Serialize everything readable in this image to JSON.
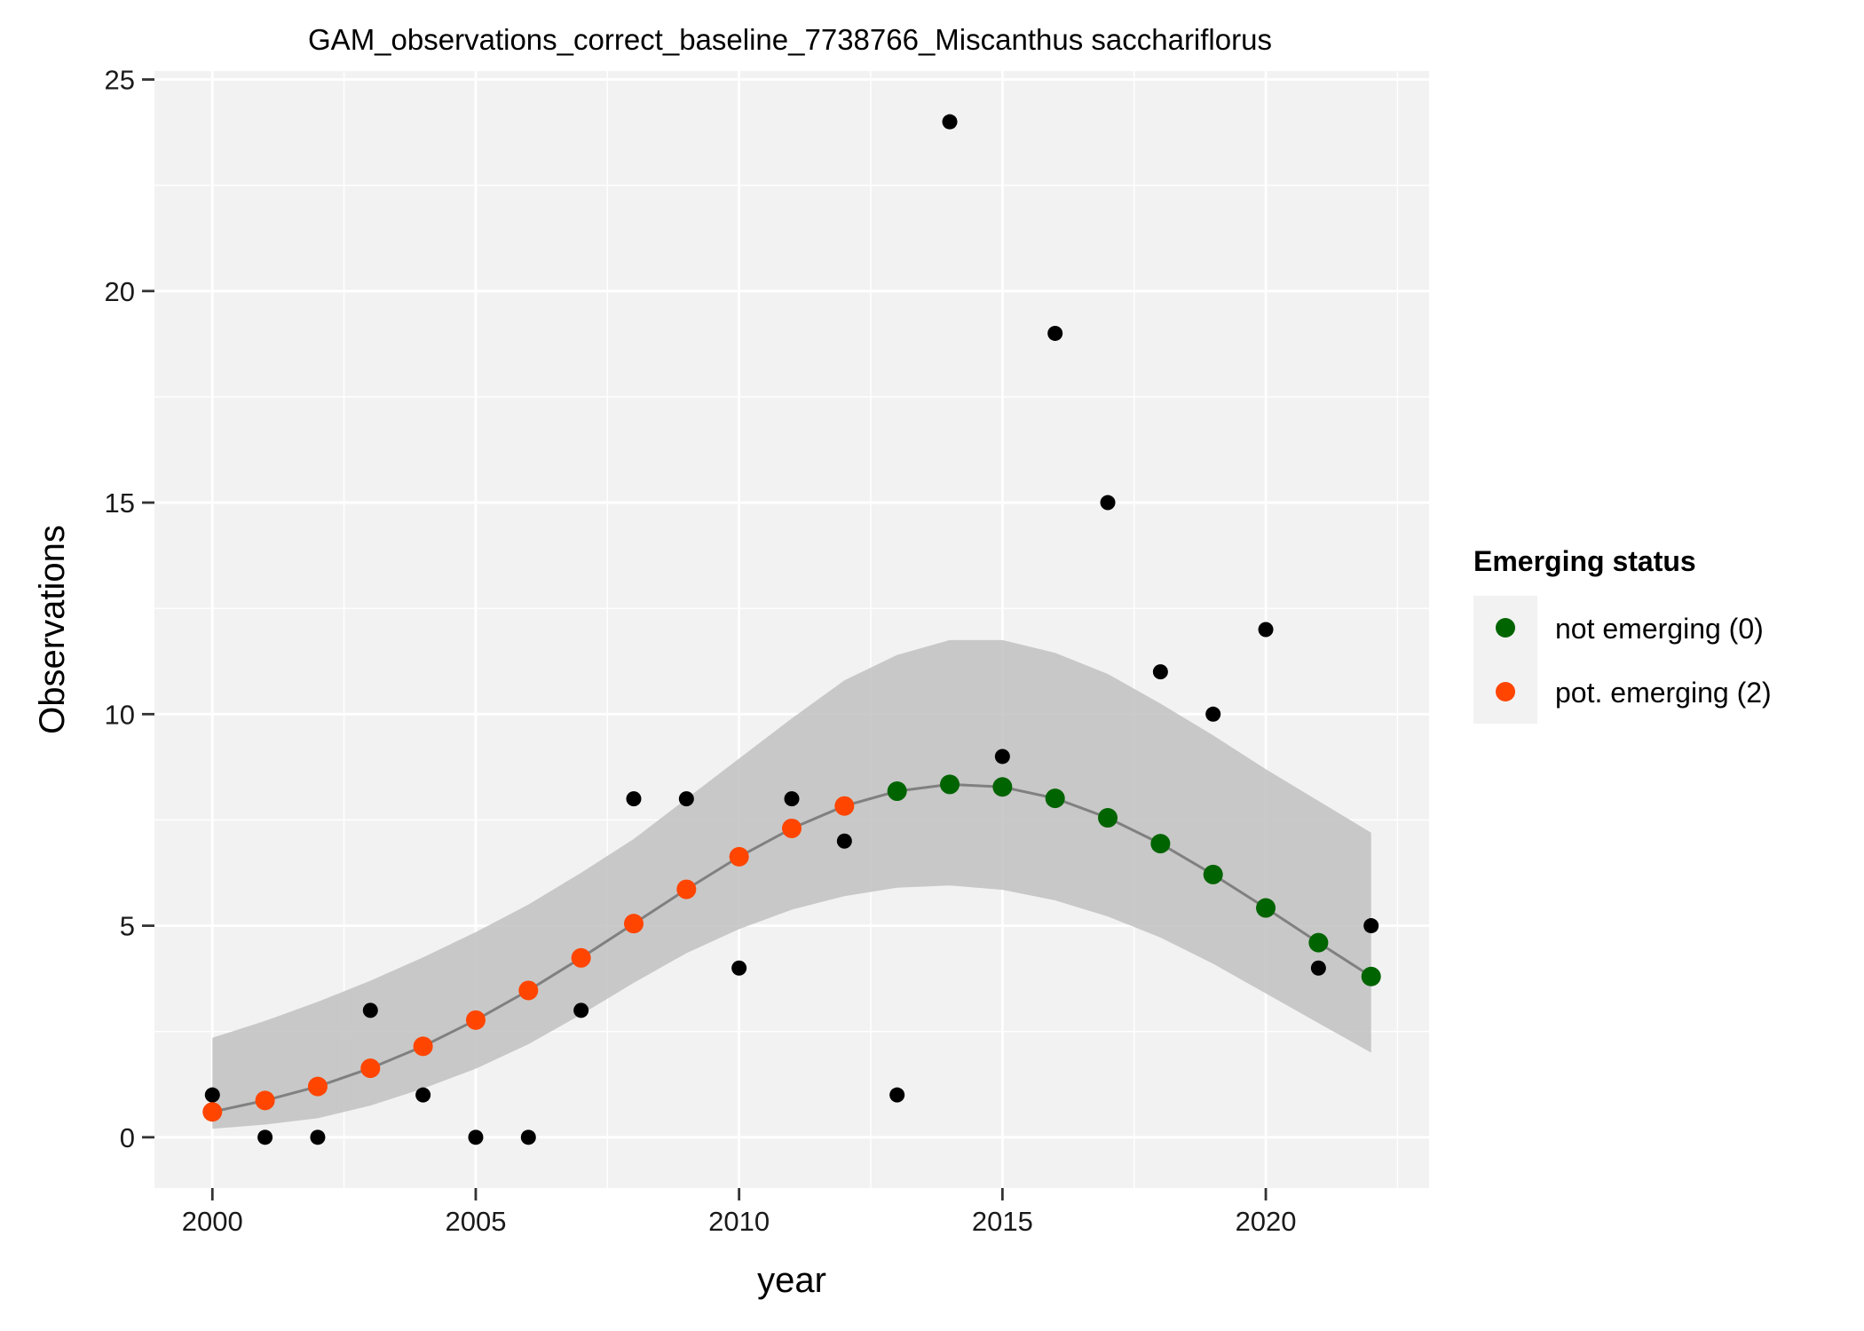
{
  "chart_data": {
    "type": "scatter",
    "title": "GAM_observations_correct_baseline_7738766_Miscanthus sacchariflorus",
    "xlabel": "year",
    "ylabel": "Observations",
    "xlim": [
      1998.9,
      2023.1
    ],
    "ylim": [
      -1.2,
      25.2
    ],
    "x_ticks": [
      2000,
      2005,
      2010,
      2015,
      2020
    ],
    "y_ticks": [
      0,
      5,
      10,
      15,
      20,
      25
    ],
    "grid": true,
    "legend": {
      "title": "Emerging status",
      "placement": "right",
      "entries": [
        {
          "label": "not emerging (0)",
          "color": "#006400"
        },
        {
          "label": "pot. emerging (2)",
          "color": "#ff4500"
        }
      ]
    },
    "colors": {
      "panel": "#f2f2f2",
      "grid": "#ffffff",
      "band": "#bebebe",
      "fit_line": "#808080",
      "observed": "#000000"
    },
    "observed": [
      {
        "x": 2000,
        "y": 1
      },
      {
        "x": 2001,
        "y": 0
      },
      {
        "x": 2002,
        "y": 0
      },
      {
        "x": 2003,
        "y": 3
      },
      {
        "x": 2004,
        "y": 1
      },
      {
        "x": 2005,
        "y": 0
      },
      {
        "x": 2006,
        "y": 0
      },
      {
        "x": 2007,
        "y": 3
      },
      {
        "x": 2008,
        "y": 8
      },
      {
        "x": 2009,
        "y": 8
      },
      {
        "x": 2010,
        "y": 4
      },
      {
        "x": 2011,
        "y": 8
      },
      {
        "x": 2012,
        "y": 7
      },
      {
        "x": 2013,
        "y": 1
      },
      {
        "x": 2014,
        "y": 24
      },
      {
        "x": 2015,
        "y": 9
      },
      {
        "x": 2016,
        "y": 19
      },
      {
        "x": 2017,
        "y": 15
      },
      {
        "x": 2018,
        "y": 11
      },
      {
        "x": 2019,
        "y": 10
      },
      {
        "x": 2020,
        "y": 12
      },
      {
        "x": 2021,
        "y": 4
      },
      {
        "x": 2022,
        "y": 5
      }
    ],
    "fitted": [
      {
        "x": 2000,
        "y": 0.6,
        "lower": 0.2,
        "upper": 2.35,
        "status": 2
      },
      {
        "x": 2001,
        "y": 0.87,
        "lower": 0.3,
        "upper": 2.75,
        "status": 2
      },
      {
        "x": 2002,
        "y": 1.2,
        "lower": 0.45,
        "upper": 3.2,
        "status": 2
      },
      {
        "x": 2003,
        "y": 1.63,
        "lower": 0.75,
        "upper": 3.7,
        "status": 2
      },
      {
        "x": 2004,
        "y": 2.15,
        "lower": 1.15,
        "upper": 4.25,
        "status": 2
      },
      {
        "x": 2005,
        "y": 2.77,
        "lower": 1.62,
        "upper": 4.85,
        "status": 2
      },
      {
        "x": 2006,
        "y": 3.47,
        "lower": 2.2,
        "upper": 5.5,
        "status": 2
      },
      {
        "x": 2007,
        "y": 4.24,
        "lower": 2.9,
        "upper": 6.25,
        "status": 2
      },
      {
        "x": 2008,
        "y": 5.05,
        "lower": 3.65,
        "upper": 7.05,
        "status": 2
      },
      {
        "x": 2009,
        "y": 5.86,
        "lower": 4.35,
        "upper": 8.0,
        "status": 2
      },
      {
        "x": 2010,
        "y": 6.63,
        "lower": 4.92,
        "upper": 8.95,
        "status": 2
      },
      {
        "x": 2011,
        "y": 7.3,
        "lower": 5.38,
        "upper": 9.9,
        "status": 2
      },
      {
        "x": 2012,
        "y": 7.83,
        "lower": 5.7,
        "upper": 10.8,
        "status": 2
      },
      {
        "x": 2013,
        "y": 8.18,
        "lower": 5.9,
        "upper": 11.4,
        "status": 0
      },
      {
        "x": 2014,
        "y": 8.34,
        "lower": 5.95,
        "upper": 11.75,
        "status": 0
      },
      {
        "x": 2015,
        "y": 8.28,
        "lower": 5.85,
        "upper": 11.75,
        "status": 0
      },
      {
        "x": 2016,
        "y": 8.01,
        "lower": 5.6,
        "upper": 11.45,
        "status": 0
      },
      {
        "x": 2017,
        "y": 7.55,
        "lower": 5.22,
        "upper": 10.95,
        "status": 0
      },
      {
        "x": 2018,
        "y": 6.94,
        "lower": 4.72,
        "upper": 10.25,
        "status": 0
      },
      {
        "x": 2019,
        "y": 6.21,
        "lower": 4.1,
        "upper": 9.5,
        "status": 0
      },
      {
        "x": 2020,
        "y": 5.42,
        "lower": 3.4,
        "upper": 8.7,
        "status": 0
      },
      {
        "x": 2021,
        "y": 4.6,
        "lower": 2.7,
        "upper": 7.95,
        "status": 0
      },
      {
        "x": 2022,
        "y": 3.8,
        "lower": 2.0,
        "upper": 7.2,
        "status": 0
      }
    ]
  }
}
